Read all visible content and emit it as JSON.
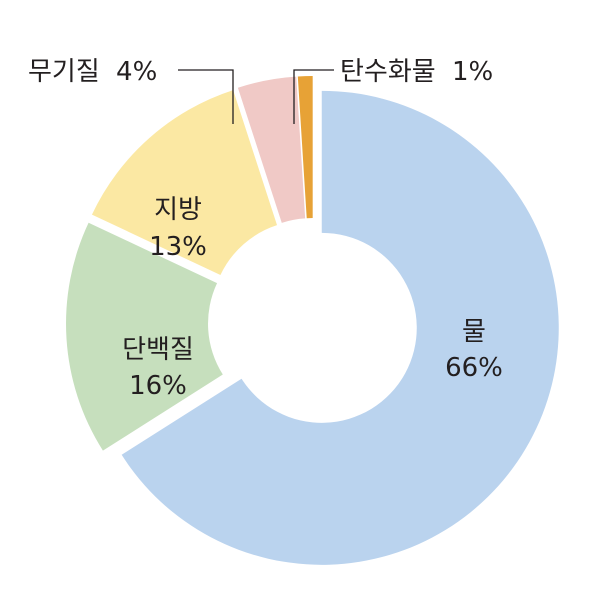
{
  "chart_data": {
    "type": "pie",
    "style": "donut-exploded",
    "legend": "none",
    "slices": [
      {
        "name": "물",
        "value_label": "66%",
        "value": 66,
        "color": "#bad3ee"
      },
      {
        "name": "단백질",
        "value_label": "16%",
        "value": 16,
        "color": "#c6dfbd"
      },
      {
        "name": "지방",
        "value_label": "13%",
        "value": 13,
        "color": "#fbe8a3"
      },
      {
        "name": "무기질",
        "value_label": "4%",
        "value": 4,
        "color": "#f0c9c6"
      },
      {
        "name": "탄수화물",
        "value_label": "1%",
        "value": 1,
        "color": "#e7a236"
      }
    ]
  }
}
